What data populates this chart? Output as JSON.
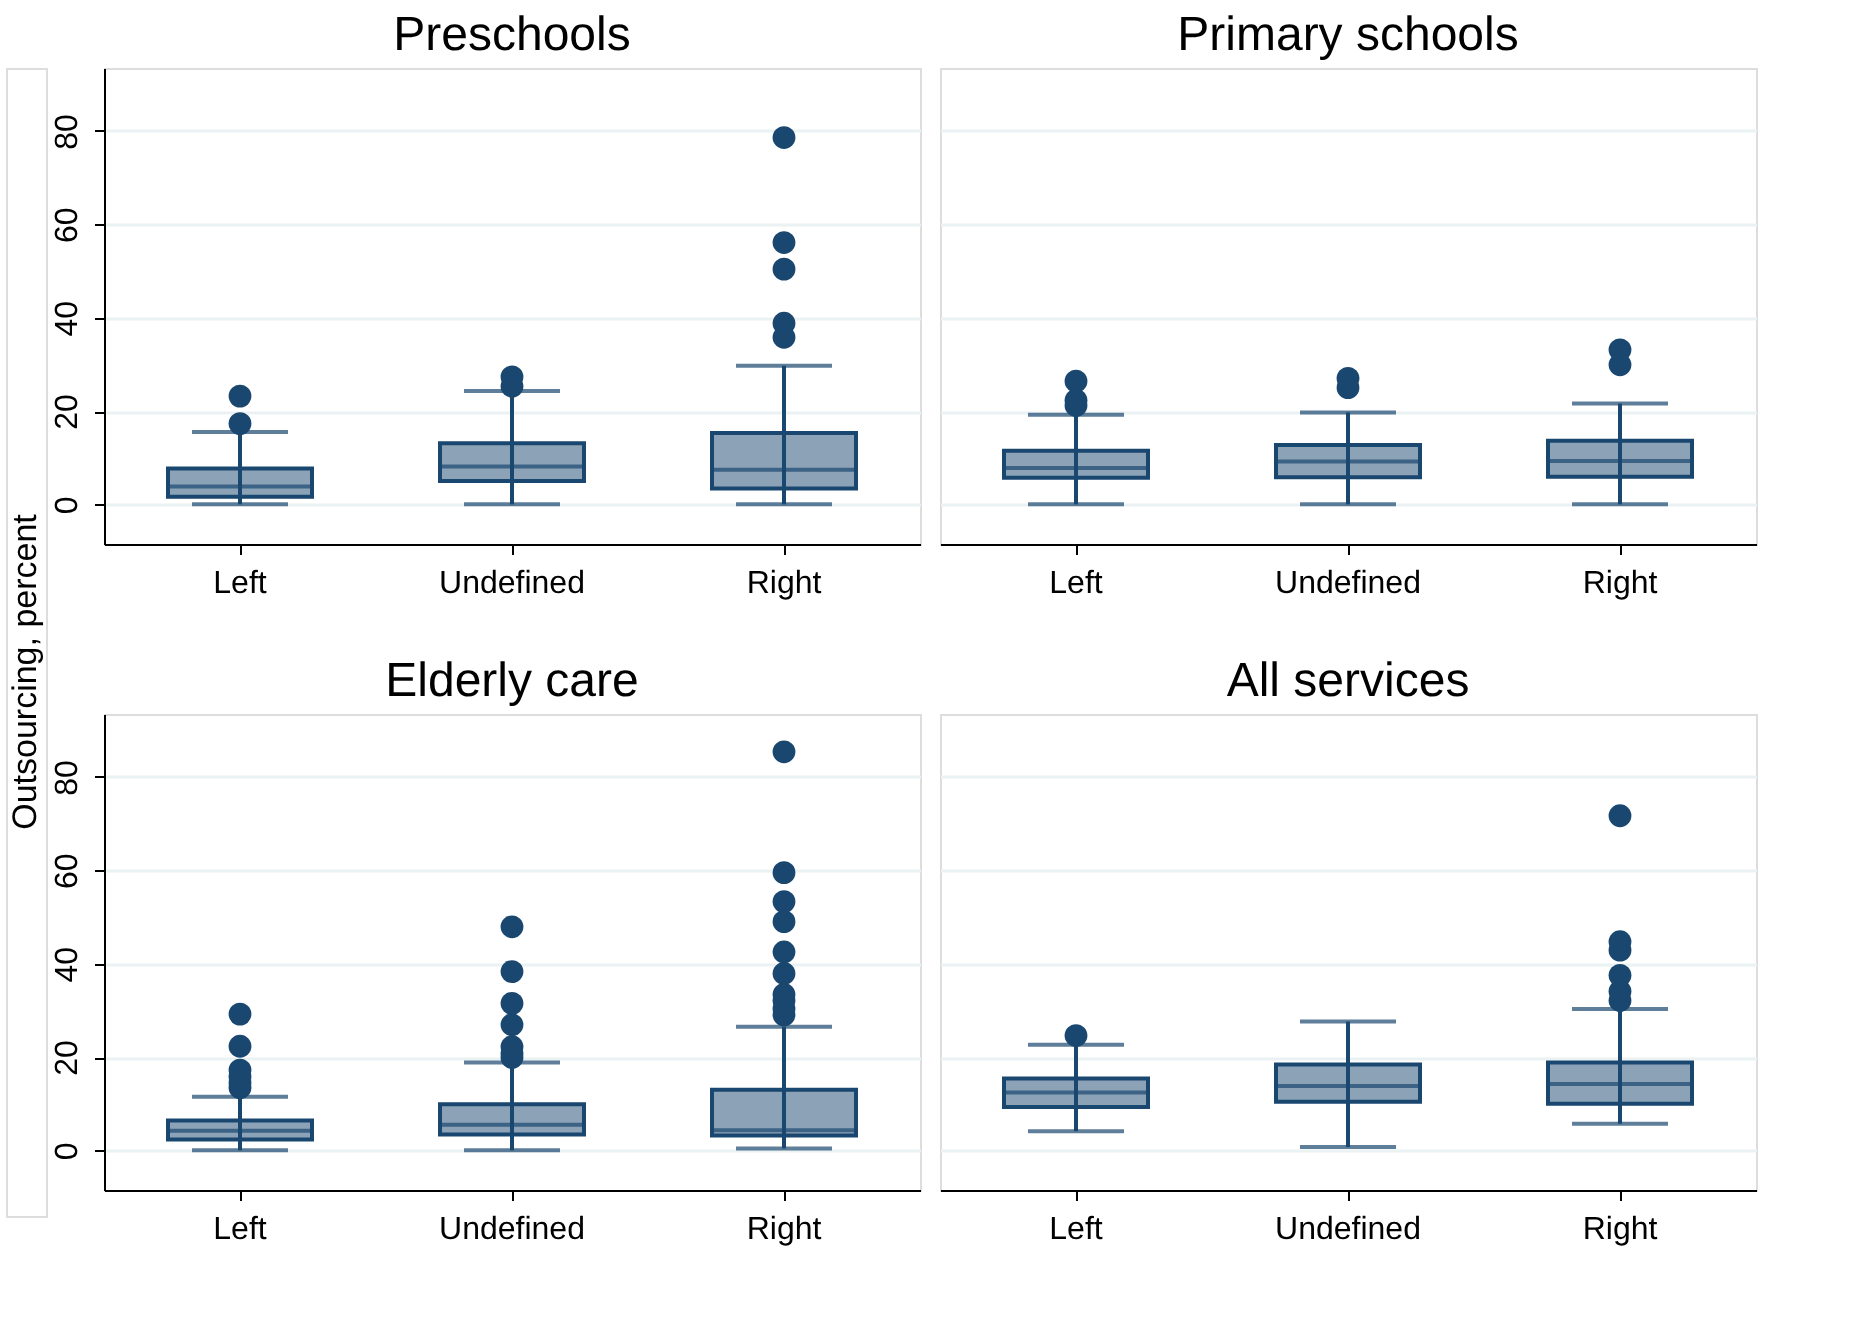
{
  "chart_data": [
    {
      "type": "box",
      "title": "Preschools",
      "ylabel": "Outsourcing, percent",
      "categories": [
        "Left",
        "Undefined",
        "Right"
      ],
      "ylim": [
        -8.5,
        93.5
      ],
      "yticks": [
        0,
        20,
        40,
        60,
        80
      ],
      "grid": "y",
      "series": [
        {
          "color": "#1a476f",
          "boxes": [
            {
              "low": 0,
              "q1": 1.6,
              "median": 3.8,
              "q3": 7.7,
              "high": 15.5,
              "outliers": [
                17.3,
                23.2
              ]
            },
            {
              "low": 0,
              "q1": 5.0,
              "median": 8.1,
              "q3": 13.1,
              "high": 24.3,
              "outliers": [
                25.3,
                27.3
              ]
            },
            {
              "low": 0,
              "q1": 3.4,
              "median": 7.4,
              "q3": 15.3,
              "high": 29.7,
              "outliers": [
                35.8,
                38.8,
                50.4,
                56.1,
                78.6
              ]
            }
          ]
        }
      ]
    },
    {
      "type": "box",
      "title": "Primary schools",
      "categories": [
        "Left",
        "Undefined",
        "Right"
      ],
      "ylim": [
        -8.5,
        93.5
      ],
      "yticks": [
        0,
        20,
        40,
        60,
        80
      ],
      "grid": "y",
      "tick_labels": "x",
      "series": [
        {
          "color": "#1a476f",
          "boxes": [
            {
              "low": 0,
              "q1": 5.7,
              "median": 7.8,
              "q3": 11.5,
              "high": 19.2,
              "outliers": [
                21.2,
                22.3,
                26.4
              ]
            },
            {
              "low": 0,
              "q1": 5.8,
              "median": 9.2,
              "q3": 12.7,
              "high": 19.7,
              "outliers": [
                25.0,
                27.0
              ]
            },
            {
              "low": 0,
              "q1": 5.9,
              "median": 9.3,
              "q3": 13.6,
              "high": 21.6,
              "outliers": [
                29.9,
                33.1
              ]
            }
          ]
        }
      ]
    },
    {
      "type": "box",
      "title": "Elderly care",
      "categories": [
        "Left",
        "Undefined",
        "Right"
      ],
      "ylim": [
        -8.5,
        93.5
      ],
      "yticks": [
        0,
        20,
        40,
        60,
        80
      ],
      "grid": "y",
      "series": [
        {
          "color": "#1a476f",
          "boxes": [
            {
              "low": 0,
              "q1": 2.3,
              "median": 4.2,
              "q3": 6.4,
              "high": 11.5,
              "outliers": [
                13.4,
                14.5,
                15.8,
                17.2,
                22.3,
                29.2
              ]
            },
            {
              "low": 0,
              "q1": 3.4,
              "median": 5.5,
              "q3": 9.9,
              "high": 18.8,
              "outliers": [
                19.9,
                20.8,
                22.2,
                26.9,
                31.5,
                38.3,
                47.9
              ]
            },
            {
              "low": 0.4,
              "q1": 3.2,
              "median": 4.3,
              "q3": 13.0,
              "high": 26.5,
              "outliers": [
                29.0,
                30.3,
                32.1,
                33.4,
                37.9,
                42.5,
                49.0,
                53.3,
                59.5,
                85.4
              ]
            }
          ]
        }
      ]
    },
    {
      "type": "box",
      "title": "All services",
      "categories": [
        "Left",
        "Undefined",
        "Right"
      ],
      "ylim": [
        -8.5,
        93.5
      ],
      "yticks": [
        0,
        20,
        40,
        60,
        80
      ],
      "grid": "y",
      "tick_labels": "x",
      "series": [
        {
          "color": "#1a476f",
          "boxes": [
            {
              "low": 4.1,
              "q1": 9.3,
              "median": 12.4,
              "q3": 15.4,
              "high": 22.6,
              "outliers": [
                24.6
              ]
            },
            {
              "low": 0.7,
              "q1": 10.4,
              "median": 13.8,
              "q3": 18.4,
              "high": 27.6
            },
            {
              "low": 5.7,
              "q1": 10.0,
              "median": 14.2,
              "q3": 18.8,
              "high": 30.3,
              "outliers": [
                32.1,
                34.1,
                37.5,
                42.9,
                44.7,
                71.7
              ]
            }
          ]
        }
      ]
    }
  ]
}
